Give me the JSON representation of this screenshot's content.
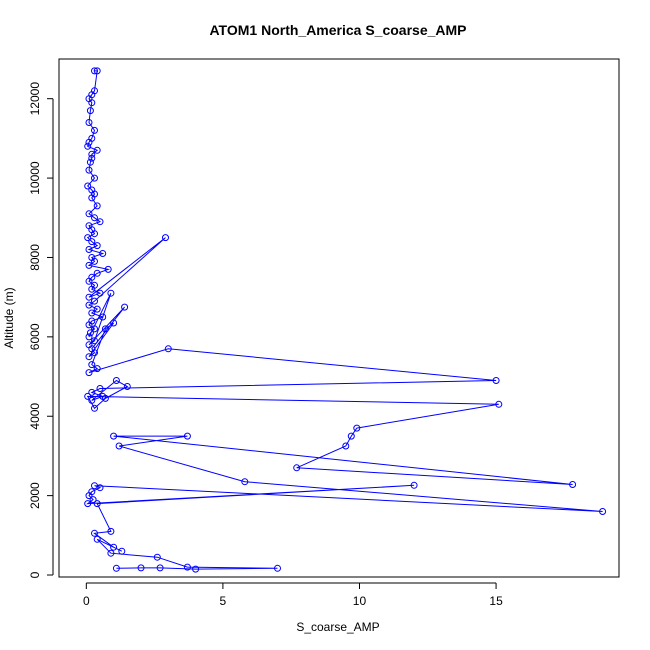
{
  "chart_data": {
    "type": "line",
    "title": "ATOM1 North_America S_coarse_AMP",
    "xlabel": "S_coarse_AMP",
    "ylabel": "Altitude (m)",
    "xlim": [
      -1,
      19.5
    ],
    "ylim": [
      -50,
      13000
    ],
    "xticks": [
      0,
      5,
      10,
      15
    ],
    "yticks": [
      0,
      2000,
      4000,
      6000,
      8000,
      10000,
      12000
    ],
    "xtick_labels": [
      "0",
      "5",
      "10",
      "15"
    ],
    "ytick_labels": [
      "0",
      "2000",
      "4000",
      "6000",
      "8000",
      "10000",
      "12000"
    ],
    "grid": false,
    "legend": "none",
    "marker": "open-circle",
    "color": "#0000ff",
    "series": [
      {
        "x": [
          0.3,
          0.4,
          0.3,
          0.2,
          0.1,
          0.2,
          0.15,
          0.1,
          0.3,
          0.2,
          0.1,
          0.05,
          0.4,
          0.2,
          0.2,
          0.15,
          0.1,
          0.3,
          0.05,
          0.2,
          0.3,
          0.2,
          0.4,
          0.1,
          0.3,
          0.5,
          0.1,
          0.2,
          0.3,
          0.05,
          0.2,
          0.4,
          0.1,
          0.6,
          0.2,
          0.3,
          0.1,
          0.8,
          0.4,
          0.2,
          0.1,
          0.3,
          0.2,
          0.5,
          0.1,
          2.9,
          0.3,
          0.1,
          0.4,
          0.2,
          0.6,
          0.2,
          0.1,
          0.3,
          0.15,
          0.1,
          0.9,
          0.3,
          0.1,
          1.4,
          0.2,
          0.3,
          0.1,
          1.0,
          0.7,
          0.2,
          0.4,
          0.1,
          3.0,
          15.0,
          0.5,
          0.2,
          0.6,
          0.2,
          1.1,
          1.5,
          0.7,
          0.3,
          0.05,
          15.1,
          9.9,
          9.7,
          9.5,
          7.7,
          17.8,
          1.0,
          3.7,
          1.2,
          5.8,
          18.9,
          0.3,
          0.5,
          0.2,
          0.1,
          0.25,
          0.05,
          12.0,
          0.4,
          0.9,
          0.3,
          1.0,
          1.3,
          0.4,
          0.9,
          2.6,
          3.7,
          7.0,
          4.0,
          2.7,
          2.0,
          1.1
        ],
        "y": [
          12700,
          12700,
          12200,
          12100,
          12000,
          11900,
          11700,
          11400,
          11200,
          11000,
          10900,
          10800,
          10700,
          10600,
          10500,
          10400,
          10200,
          10000,
          9800,
          9700,
          9600,
          9500,
          9300,
          9100,
          9000,
          8900,
          8800,
          8700,
          8600,
          8500,
          8400,
          8300,
          8200,
          8100,
          8000,
          7900,
          7800,
          7700,
          7600,
          7500,
          7400,
          7300,
          7200,
          7100,
          7000,
          8500,
          6900,
          6800,
          6700,
          6600,
          6500,
          6400,
          6300,
          6200,
          6100,
          6000,
          7100,
          5900,
          5800,
          6750,
          5700,
          5600,
          5500,
          6350,
          6200,
          5300,
          5200,
          5100,
          5700,
          4900,
          4700,
          4600,
          4500,
          4400,
          4900,
          4750,
          4450,
          4200,
          4500,
          4300,
          3700,
          3500,
          3250,
          2700,
          2280,
          3500,
          3500,
          3250,
          2350,
          1600,
          2250,
          2200,
          2100,
          2000,
          1900,
          1800,
          2260,
          1800,
          1100,
          1050,
          700,
          600,
          900,
          550,
          450,
          200,
          170,
          150,
          180,
          180,
          170
        ]
      }
    ]
  }
}
